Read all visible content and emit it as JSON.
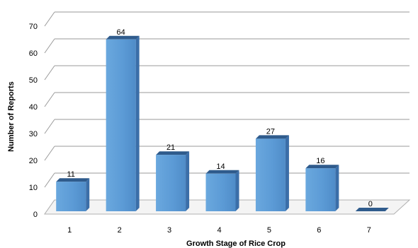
{
  "chart_data": {
    "type": "bar",
    "style": "3d-column",
    "categories": [
      "1",
      "2",
      "3",
      "4",
      "5",
      "6",
      "7"
    ],
    "values": [
      11,
      64,
      21,
      14,
      27,
      16,
      0
    ],
    "data_labels": [
      "11",
      "64",
      "21",
      "14",
      "27",
      "16",
      "0"
    ],
    "y_ticks": [
      "0",
      "10",
      "20",
      "30",
      "40",
      "50",
      "60",
      "70"
    ],
    "xlabel": "Growth Stage of Rice Crop",
    "ylabel": "Number of Reports",
    "ylim": [
      0,
      70
    ],
    "grid": true,
    "legend": "none",
    "colors": {
      "bar_front": "#5b9bd5",
      "bar_side": "#3b6ea8",
      "bar_top": "#2f5b8c",
      "grid": "#9a9a9a"
    }
  }
}
